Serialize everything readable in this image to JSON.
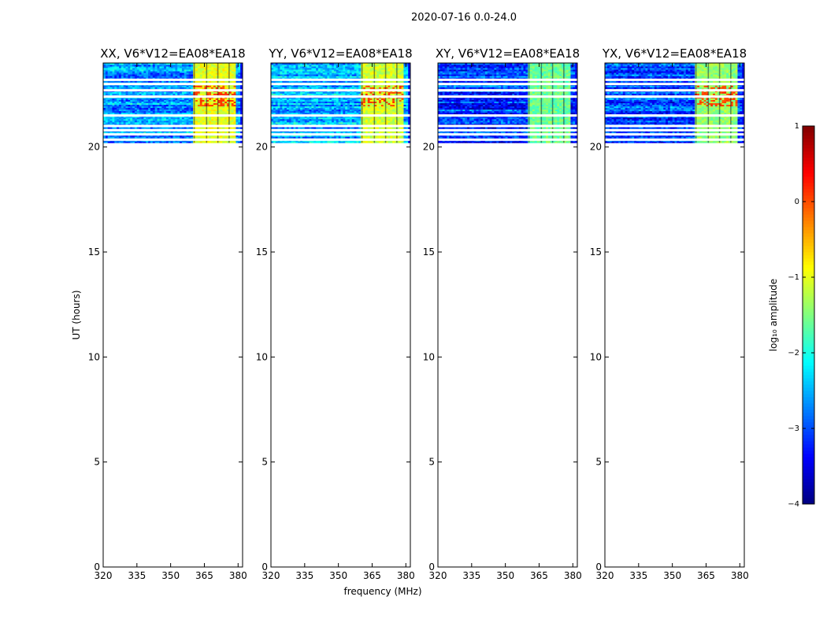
{
  "chart_data": {
    "type": "heatmap",
    "suptitle": "2020-07-16 0.0-24.0",
    "xlabel": "frequency (MHz)",
    "ylabel": "UT (hours)",
    "xlim": [
      320,
      382
    ],
    "ylim": [
      0,
      24
    ],
    "xticks": [
      320,
      335,
      350,
      365,
      380
    ],
    "yticks": [
      0,
      5,
      10,
      15,
      20
    ],
    "data_time_range": [
      20.2,
      24.0
    ],
    "high_band_mhz": [
      360,
      378.5
    ],
    "high_band_columns_mhz": [
      360.5,
      366,
      371,
      376
    ],
    "panels": [
      {
        "title": "XX, V6*V12=EA08*EA18",
        "level_low": -2.6,
        "level_high": -1.0,
        "hot": true
      },
      {
        "title": "YY, V6*V12=EA08*EA18",
        "level_low": -2.5,
        "level_high": -1.1,
        "hot": true
      },
      {
        "title": "XY, V6*V12=EA08*EA18",
        "level_low": -3.1,
        "level_high": -1.6,
        "hot": false
      },
      {
        "title": "YX, V6*V12=EA08*EA18",
        "level_low": -3.0,
        "level_high": -1.4,
        "hot": true
      }
    ],
    "gap_rows_ut": [
      23.2,
      23.0,
      22.7,
      22.4,
      21.5,
      21.0,
      20.8,
      20.6,
      20.35
    ],
    "colorbar": {
      "label": "log₁₀ amplitude",
      "range": [
        -4,
        1
      ],
      "ticks": [
        1,
        0,
        -1,
        -2,
        -3,
        -4
      ],
      "tick_labels": [
        "1",
        "0",
        "−1",
        "−2",
        "−3",
        "−4"
      ],
      "colormap": "jet"
    }
  }
}
